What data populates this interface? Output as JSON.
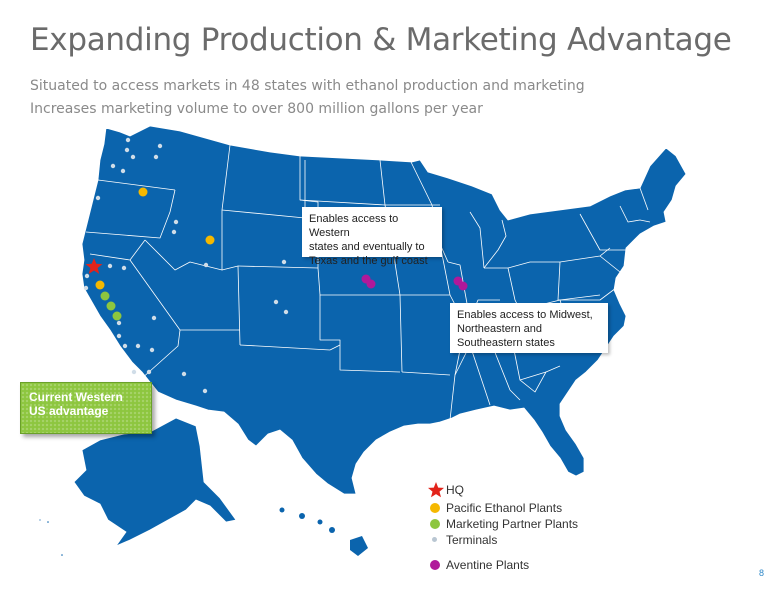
{
  "title": "Expanding Production & Marketing Advantage",
  "subtitle_lines": [
    "Situated to access markets in 48 states with ethanol production and marketing",
    "Increases marketing volume to over 800 million gallons per year"
  ],
  "callouts": {
    "west": [
      "Enables access to Western",
      "states and eventually to",
      "Texas and the gulf coast"
    ],
    "midwest": [
      "Enables access to Midwest,",
      "Northeastern and",
      "Southeastern states"
    ]
  },
  "advantage_box": [
    "Current Western",
    "US advantage"
  ],
  "legend": {
    "hq": "HQ",
    "pacific": "Pacific Ethanol Plants",
    "partner": "Marketing Partner Plants",
    "terminals": "Terminals",
    "aventine": "Aventine Plants"
  },
  "colors": {
    "map_fill": "#0b64ad",
    "state_border": "#ffffff",
    "hq": "#e2231a",
    "pacific_plant": "#f5b800",
    "partner_plant": "#8dc63f",
    "terminal": "#d0dde8",
    "aventine": "#b0199a",
    "title": "#6b6b6b",
    "advantage_box": "#8dc63f"
  },
  "icons": {
    "hq": "red-star-icon",
    "pacific": "yellow-dot-icon",
    "partner": "green-dot-icon",
    "terminal": "gray-dot-icon",
    "aventine": "purple-dot-icon"
  },
  "page_number": "8"
}
